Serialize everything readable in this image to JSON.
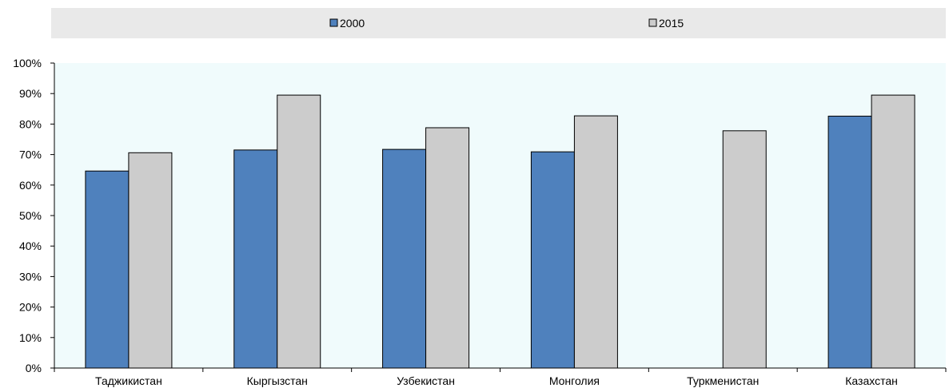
{
  "chart_data": {
    "type": "bar",
    "categories": [
      "Таджикистан",
      "Кыргызстан",
      "Узбекистан",
      "Монголия",
      "Туркменистан",
      "Казахстан"
    ],
    "series": [
      {
        "name": "2000",
        "values": [
          64.6,
          71.5,
          71.7,
          70.9,
          null,
          82.6
        ],
        "color": "#4f81bd"
      },
      {
        "name": "2015",
        "values": [
          70.6,
          89.5,
          78.8,
          82.7,
          77.8,
          89.5
        ],
        "color": "#cccccc"
      }
    ],
    "y_ticks": [
      "0%",
      "10%",
      "20%",
      "30%",
      "40%",
      "50%",
      "60%",
      "70%",
      "80%",
      "90%",
      "100%"
    ],
    "ylim": [
      0,
      100
    ],
    "legend_position": "top",
    "plot_background": "#f0fbfc",
    "legend_background": "#e9e9e9",
    "gridlines": false
  }
}
